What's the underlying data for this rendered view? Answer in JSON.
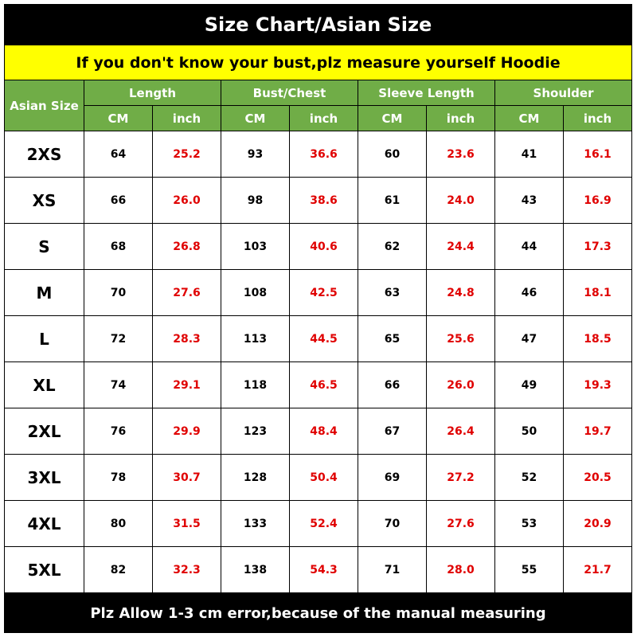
{
  "title": "Size Chart/Asian Size",
  "subtitle": "If you don't know your bust,plz measure yourself Hoodie",
  "header": {
    "size_label": "Asian Size",
    "groups": [
      "Length",
      "Bust/Chest",
      "Sleeve Length",
      "Shoulder"
    ],
    "unit_cm": "CM",
    "unit_inch": "inch"
  },
  "rows": [
    [
      "2XS",
      "64",
      "25.2",
      "93",
      "36.6",
      "60",
      "23.6",
      "41",
      "16.1"
    ],
    [
      "XS",
      "66",
      "26.0",
      "98",
      "38.6",
      "61",
      "24.0",
      "43",
      "16.9"
    ],
    [
      "S",
      "68",
      "26.8",
      "103",
      "40.6",
      "62",
      "24.4",
      "44",
      "17.3"
    ],
    [
      "M",
      "70",
      "27.6",
      "108",
      "42.5",
      "63",
      "24.8",
      "46",
      "18.1"
    ],
    [
      "L",
      "72",
      "28.3",
      "113",
      "44.5",
      "65",
      "25.6",
      "47",
      "18.5"
    ],
    [
      "XL",
      "74",
      "29.1",
      "118",
      "46.5",
      "66",
      "26.0",
      "49",
      "19.3"
    ],
    [
      "2XL",
      "76",
      "29.9",
      "123",
      "48.4",
      "67",
      "26.4",
      "50",
      "19.7"
    ],
    [
      "3XL",
      "78",
      "30.7",
      "128",
      "50.4",
      "69",
      "27.2",
      "52",
      "20.5"
    ],
    [
      "4XL",
      "80",
      "31.5",
      "133",
      "52.4",
      "70",
      "27.6",
      "53",
      "20.9"
    ],
    [
      "5XL",
      "82",
      "32.3",
      "138",
      "54.3",
      "71",
      "28.0",
      "55",
      "21.7"
    ]
  ],
  "footer": "Plz Allow 1-3 cm error,because of the manual measuring",
  "colors": {
    "header_green": "#70ad47",
    "banner_yellow": "#ffff00",
    "inch_red": "#e00000"
  }
}
